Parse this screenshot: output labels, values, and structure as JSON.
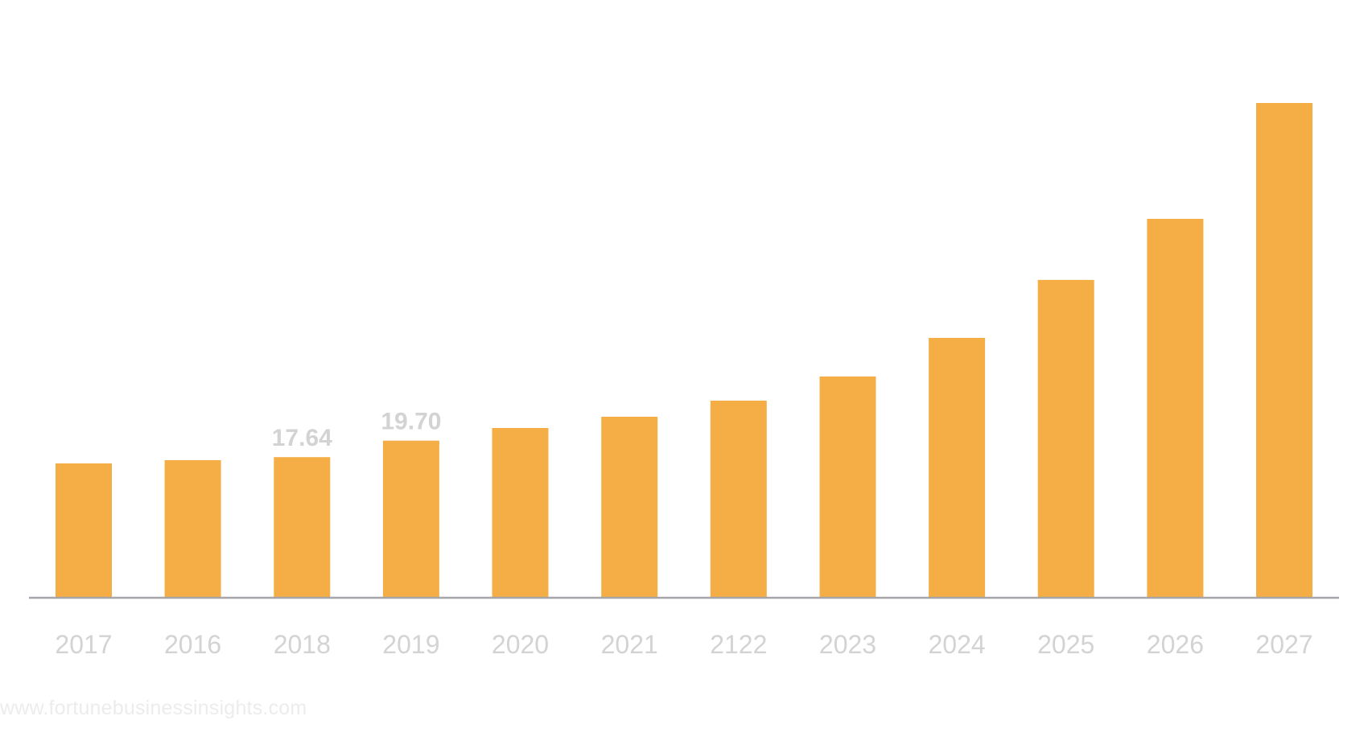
{
  "chart_data": {
    "type": "bar",
    "title": "",
    "xlabel": "",
    "ylabel": "",
    "categories": [
      "2017",
      "2016",
      "2018",
      "2019",
      "2020",
      "2021",
      "2122",
      "2023",
      "2024",
      "2025",
      "2026",
      "2027"
    ],
    "values": [
      16.85,
      17.25,
      17.64,
      19.7,
      21.29,
      22.7,
      24.72,
      27.75,
      32.59,
      39.86,
      47.52,
      62.05
    ],
    "data_labels": [
      {
        "category": "2018",
        "text": "17.64"
      },
      {
        "category": "2019",
        "text": "19.70"
      }
    ],
    "ylim": [
      0,
      62.05
    ],
    "grid": false,
    "legend": "none",
    "y_axis_visible": false,
    "bar_color": "#f4ae45",
    "axis_color": "#a6a6aa",
    "label_color": "#d3d3d3"
  },
  "watermark": "www.fortunebusinessinsights.com"
}
